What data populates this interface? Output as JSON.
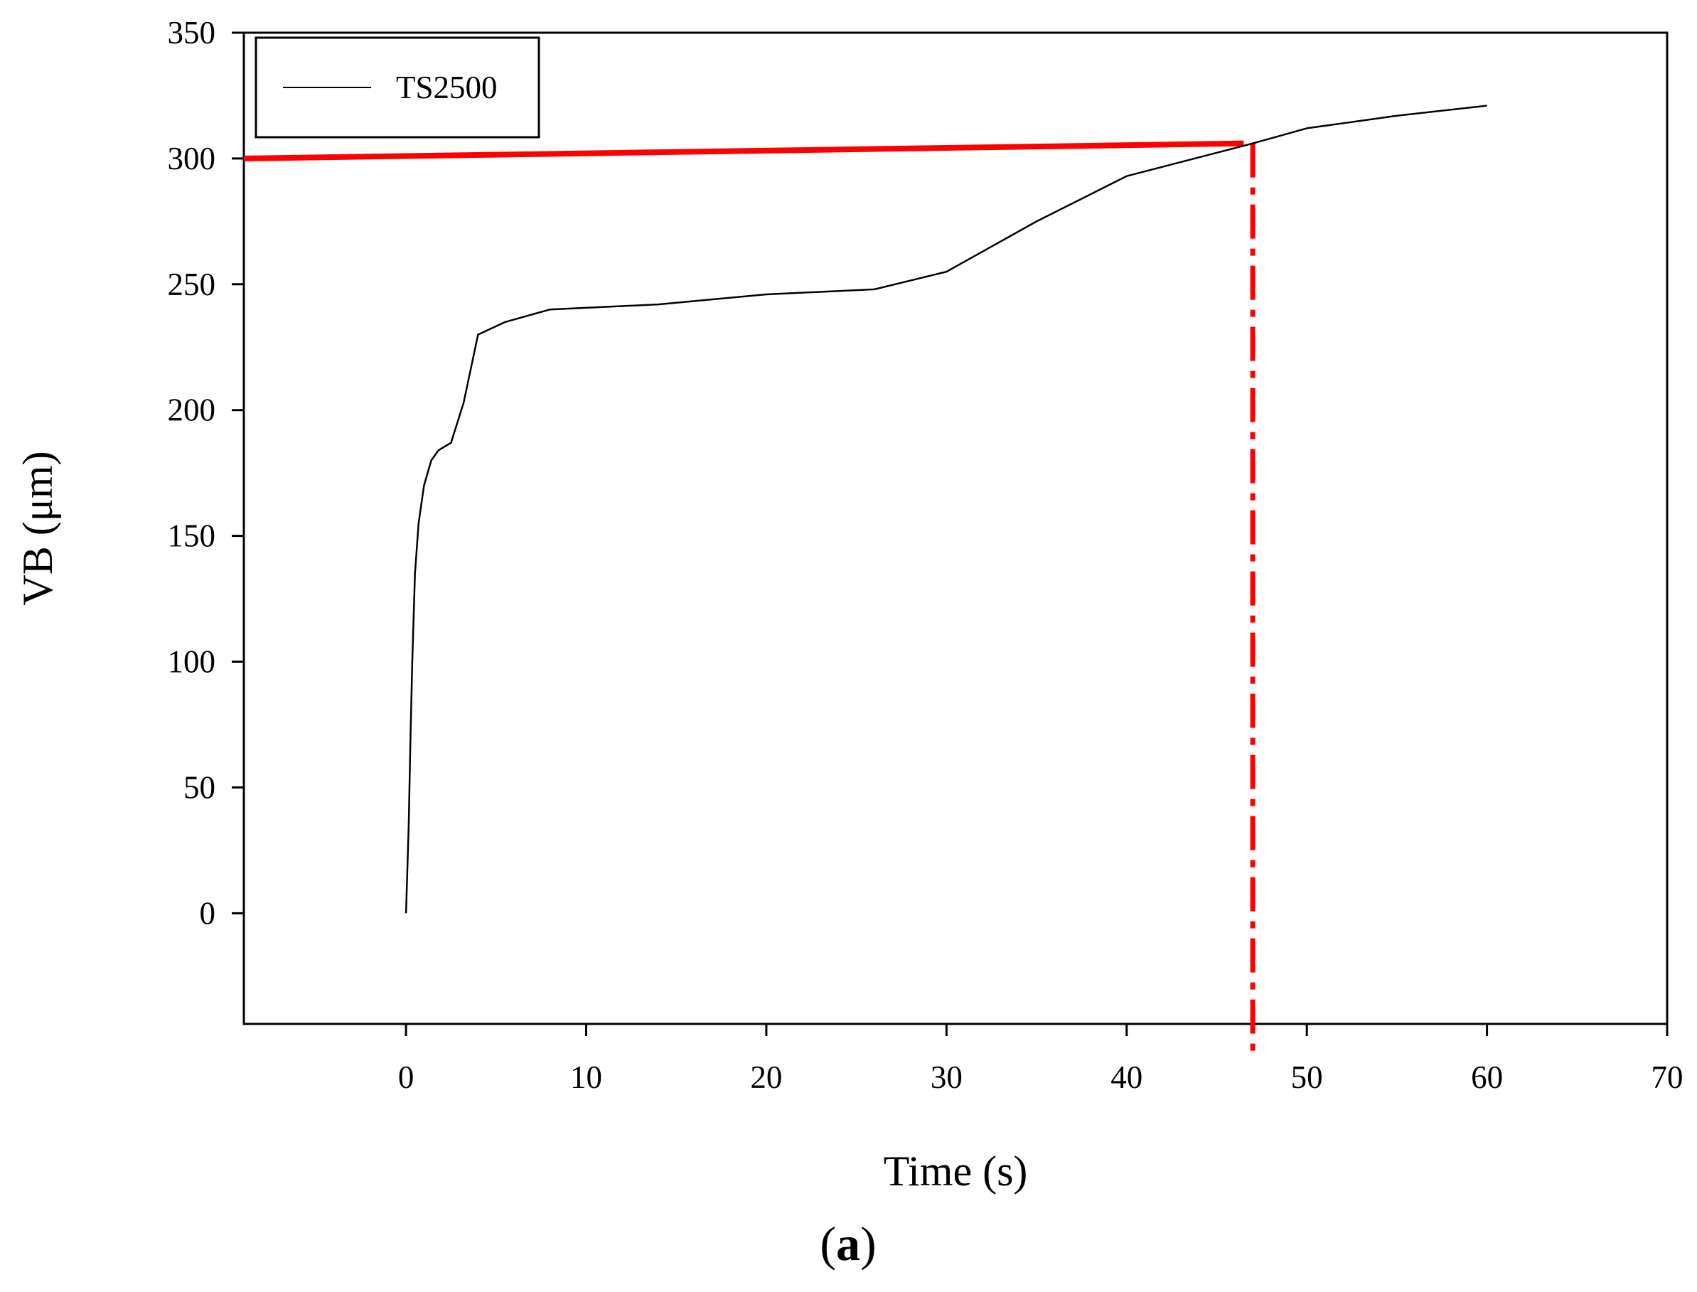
{
  "chart_data": {
    "type": "line",
    "xlabel": "Time (s)",
    "ylabel": "VB (μm)",
    "xlim": [
      -9,
      70
    ],
    "ylim": [
      -44,
      350
    ],
    "xticks": [
      0,
      10,
      20,
      30,
      40,
      50,
      60,
      70
    ],
    "yticks": [
      0,
      50,
      100,
      150,
      200,
      250,
      300,
      350
    ],
    "grid": false,
    "legend_position": "top-left",
    "series": [
      {
        "name": "TS2500",
        "color": "#000000",
        "x": [
          0,
          0.15,
          0.25,
          0.35,
          0.5,
          0.7,
          1.0,
          1.4,
          1.8,
          2.5,
          3.2,
          4.0,
          5.5,
          8.0,
          14.0,
          20.0,
          26.0,
          30.0,
          35.0,
          40.0,
          47.0,
          50.0,
          55.0,
          60.0
        ],
        "y": [
          0,
          35,
          70,
          100,
          135,
          155,
          170,
          180,
          184,
          187,
          203,
          230,
          235,
          240,
          242,
          246,
          248,
          255,
          275,
          293,
          306,
          312,
          317,
          321
        ]
      }
    ],
    "annotations": [
      {
        "kind": "threshold-line",
        "color": "#ff0000",
        "x": [
          -9,
          46.5
        ],
        "y": [
          300,
          306
        ]
      },
      {
        "kind": "vertical-dashdot-line",
        "color": "#ff0000",
        "x": 47,
        "y": [
          306,
          -55
        ]
      }
    ]
  },
  "caption": {
    "open": "(",
    "label": "a",
    "close": ")"
  }
}
